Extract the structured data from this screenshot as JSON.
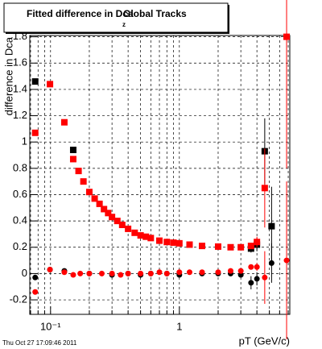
{
  "chart_data": {
    "type": "scatter",
    "title": "Fitted difference in Dca",
    "title_subscript": "z",
    "title_suffix": "Global Tracks",
    "x_label": "pT (GeV/c)",
    "y_label": "difference in Dca",
    "footer": "Thu Oct 27 17:09:46 2011",
    "log_x": true,
    "grid": true,
    "xlim": [
      0.069,
      7.2
    ],
    "ylim": [
      -0.31,
      1.81
    ],
    "xticks": [
      {
        "value": 0.1,
        "label": "10⁻¹"
      },
      1
    ],
    "xminor": [
      0.07,
      0.08,
      0.09,
      0.2,
      0.3,
      0.4,
      0.5,
      0.6,
      0.7,
      0.8,
      0.9,
      2,
      3,
      4,
      5,
      6,
      7
    ],
    "yticks": [
      -0.2,
      0,
      0.2,
      0.4,
      0.6,
      0.8,
      1,
      1.2,
      1.4,
      1.6,
      1.8
    ],
    "series": [
      {
        "color": "#000000",
        "marker": "square",
        "x": [
          0.076,
          0.15,
          3.6,
          4.0,
          4.6,
          5.2
        ],
        "values": [
          1.46,
          0.94,
          0.19,
          0.22,
          0.93,
          0.36
        ],
        "errors": [
          0.02,
          0.01,
          0.03,
          0.05,
          0.25,
          0.3
        ]
      },
      {
        "color": "#ff0000",
        "marker": "square",
        "x": [
          0.076,
          0.099,
          0.128,
          0.15,
          0.165,
          0.18,
          0.2,
          0.22,
          0.24,
          0.26,
          0.28,
          0.3,
          0.33,
          0.36,
          0.4,
          0.45,
          0.5,
          0.55,
          0.6,
          0.7,
          0.8,
          0.9,
          1.0,
          1.2,
          1.5,
          2.0,
          2.5,
          3.0,
          3.6,
          4.0,
          4.6,
          6.8
        ],
        "values": [
          1.07,
          1.44,
          1.15,
          0.87,
          0.78,
          0.7,
          0.62,
          0.57,
          0.53,
          0.49,
          0.46,
          0.43,
          0.4,
          0.37,
          0.34,
          0.31,
          0.29,
          0.28,
          0.27,
          0.25,
          0.24,
          0.235,
          0.23,
          0.22,
          0.21,
          0.205,
          0.2,
          0.2,
          0.21,
          0.24,
          0.65,
          1.8
        ],
        "errors": [
          0.01,
          0.01,
          0.005,
          0.005,
          0.005,
          0.005,
          0.005,
          0.005,
          0.005,
          0.005,
          0.005,
          0.005,
          0.005,
          0.005,
          0.005,
          0.005,
          0.005,
          0.005,
          0.005,
          0.005,
          0.005,
          0.005,
          0.005,
          0.005,
          0.005,
          0.005,
          0.01,
          0.01,
          0.02,
          0.04,
          0.3,
          1.0
        ]
      },
      {
        "color": "#000000",
        "marker": "circle",
        "x": [
          0.076,
          0.099,
          0.128,
          0.2,
          0.3,
          0.4,
          0.5,
          0.6,
          0.8,
          1.0,
          1.5,
          2.0,
          2.5,
          3.0,
          3.6,
          4.0,
          5.2
        ],
        "values": [
          -0.03,
          0.03,
          0.02,
          0.0,
          -0.01,
          0.0,
          -0.01,
          0.0,
          0.0,
          -0.01,
          0.0,
          0.0,
          0.0,
          -0.01,
          -0.07,
          -0.04,
          0.08
        ],
        "errors": [
          0.01,
          0.005,
          0.005,
          0.005,
          0.005,
          0.005,
          0.005,
          0.005,
          0.005,
          0.005,
          0.005,
          0.005,
          0.01,
          0.01,
          0.05,
          0.05,
          0.15
        ]
      },
      {
        "color": "#ff0000",
        "marker": "circle",
        "x": [
          0.076,
          0.099,
          0.128,
          0.15,
          0.17,
          0.2,
          0.25,
          0.3,
          0.35,
          0.4,
          0.5,
          0.6,
          0.7,
          0.8,
          1.0,
          1.2,
          1.5,
          2.0,
          2.5,
          3.0,
          3.6,
          4.0,
          4.6,
          6.8
        ],
        "values": [
          -0.14,
          0.03,
          0.01,
          -0.01,
          0.0,
          0.0,
          0.0,
          0.0,
          -0.01,
          0.0,
          0.0,
          0.0,
          0.01,
          0.0,
          0.01,
          0.01,
          0.01,
          0.01,
          0.02,
          0.02,
          0.05,
          0.05,
          -0.03,
          0.1
        ],
        "errors": [
          0.01,
          0.005,
          0.005,
          0.005,
          0.005,
          0.005,
          0.005,
          0.005,
          0.005,
          0.005,
          0.005,
          0.005,
          0.005,
          0.005,
          0.005,
          0.005,
          0.005,
          0.005,
          0.01,
          0.01,
          0.02,
          0.03,
          0.2,
          0.6
        ]
      }
    ]
  }
}
